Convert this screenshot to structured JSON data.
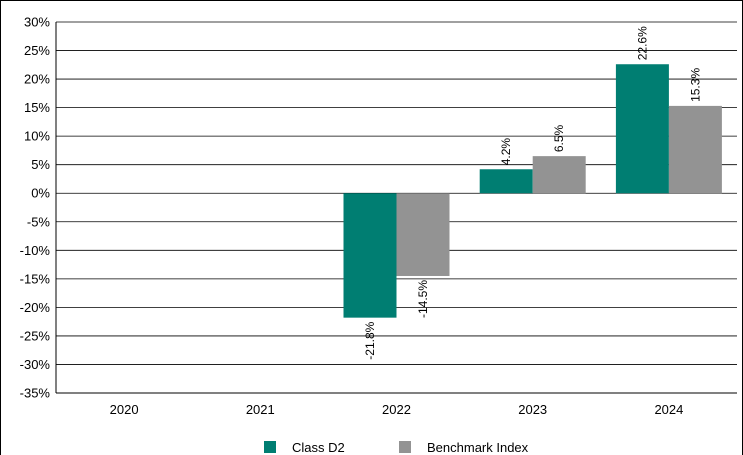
{
  "chart_data": {
    "type": "bar",
    "categories": [
      "2020",
      "2021",
      "2022",
      "2023",
      "2024"
    ],
    "series": [
      {
        "name": "Class D2",
        "color": "#007E72",
        "values": [
          null,
          null,
          -21.8,
          4.2,
          22.6
        ]
      },
      {
        "name": "Benchmark Index",
        "color": "#939393",
        "values": [
          null,
          null,
          -14.5,
          6.5,
          15.3
        ]
      }
    ],
    "data_labels": [
      [
        null,
        null,
        "-21.8%",
        "4.2%",
        "22.6%"
      ],
      [
        null,
        null,
        "-14.5%",
        "6.5%",
        "15.3%"
      ]
    ],
    "y_ticks": [
      "30%",
      "25%",
      "20%",
      "15%",
      "10%",
      "5%",
      "0%",
      "-5%",
      "-10%",
      "-15%",
      "-20%",
      "-25%",
      "-30%",
      "-35%"
    ],
    "ylim": [
      -35,
      30
    ],
    "y_step": 5,
    "grid": true,
    "legend_position": "bottom",
    "title": "",
    "xlabel": "",
    "ylabel": ""
  }
}
